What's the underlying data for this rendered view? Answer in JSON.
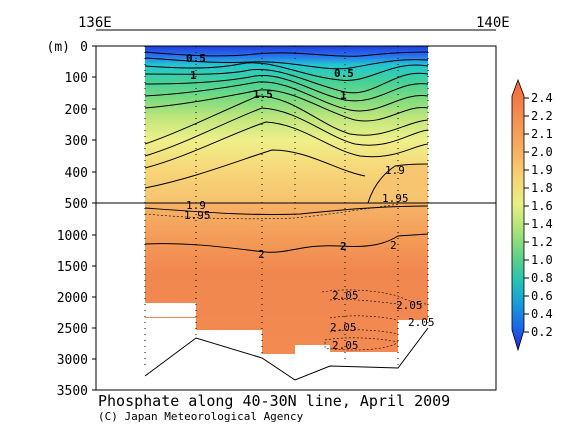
{
  "chart_data": {
    "type": "contour-section",
    "title": "Phosphate along 40-30N line, April 2009",
    "credit": "(C) Japan Meteorological Agency",
    "y_unit": "(m)",
    "x_top_labels": [
      "136E",
      "140E"
    ],
    "y_ticks_upper": [
      0,
      100,
      200,
      300,
      400,
      500
    ],
    "y_ticks_lower": [
      1000,
      1500,
      2000,
      2500,
      3000,
      3500
    ],
    "y_split_depth": 500,
    "colorbar_levels": [
      "2.4",
      "2.2",
      "2.1",
      "2.0",
      "1.9",
      "1.8",
      "1.6",
      "1.4",
      "1.2",
      "1.0",
      "0.8",
      "0.6",
      "0.4",
      "0.2"
    ],
    "colorbar_colors": [
      "#f26a3f",
      "#f2894e",
      "#f3a35c",
      "#f7bd6a",
      "#f8d97a",
      "#eef185",
      "#c9ea79",
      "#9bde78",
      "#64d086",
      "#2fc3a2",
      "#1aa7c7",
      "#1381e0",
      "#1f52e6",
      "#2b2bd6"
    ],
    "contour_labels": [
      "0.5",
      "1",
      "0.5",
      "1",
      "1.5",
      "1.9",
      "1.9",
      "1.95",
      "1.95",
      "2",
      "2",
      "2",
      "2.05",
      "2.05",
      "2.05",
      "2.05",
      "2.05"
    ],
    "station_count": 7
  }
}
